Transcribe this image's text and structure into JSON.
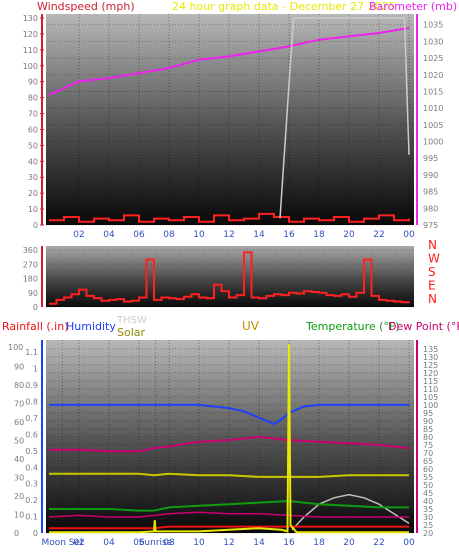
{
  "header": {
    "left": "Windspeed (mph)",
    "center": "24 hour graph data - December 27 2025",
    "right": "Barometer (mb)"
  },
  "legend": {
    "rainfall": "Rainfall (.in)",
    "humidity": "Humidity",
    "thsw": "THSW",
    "solar": "Solar",
    "uv": "UV",
    "temperature": "Temperature (°F)",
    "dewpoint": "Dew Point (°F)"
  },
  "compass": [
    "N",
    "W",
    "S",
    "E",
    "N"
  ],
  "colors": {
    "wind": "#ff2020",
    "windAxis": "#cc2030",
    "barometer": "#ee22ee",
    "rain": "#ee1111",
    "humidity": "#2040ff",
    "thsw": "#cccccc",
    "solar": "#c8c800",
    "uv": "#e8e800",
    "temperature": "#109a10",
    "dewpoint": "#cc0070",
    "header": "#e8e800"
  },
  "chart_data": [
    {
      "type": "line",
      "name": "wind-barometer",
      "x_ticks": [
        "02",
        "04",
        "06",
        "08",
        "10",
        "12",
        "14",
        "16",
        "18",
        "20",
        "22",
        "00"
      ],
      "left_axis": {
        "ticks": [
          0,
          10,
          20,
          30,
          40,
          50,
          60,
          70,
          80,
          90,
          100,
          110,
          120,
          130
        ],
        "ylim": [
          0,
          130
        ]
      },
      "right_axis": {
        "ticks": [
          975,
          980,
          985,
          990,
          995,
          1000,
          1005,
          1010,
          1015,
          1020,
          1025,
          1030,
          1035
        ],
        "ylim": [
          975,
          1037
        ]
      },
      "series": [
        {
          "key": "barometer",
          "x": [
            0,
            2,
            4,
            6,
            8,
            10,
            12,
            14,
            16,
            18,
            20,
            22,
            24
          ],
          "y": [
            1014,
            1018,
            1019,
            1020.5,
            1022,
            1024.5,
            1025.5,
            1027,
            1028.5,
            1030.5,
            1031.5,
            1032.5,
            1034
          ]
        },
        {
          "key": "wind",
          "x": [
            0,
            1,
            2,
            3,
            4,
            5,
            6,
            7,
            8,
            9,
            10,
            11,
            12,
            13,
            14,
            15,
            16,
            17,
            18,
            19,
            20,
            21,
            22,
            23,
            24
          ],
          "y": [
            3,
            5,
            2,
            4,
            3,
            6,
            2,
            4,
            3,
            5,
            2,
            6,
            3,
            4,
            7,
            5,
            2,
            4,
            3,
            5,
            2,
            4,
            6,
            3,
            4
          ]
        },
        {
          "key": "thsw",
          "x": [
            15.4,
            16.3,
            16.4,
            23.7,
            24
          ],
          "y": [
            977,
            1037,
            1037,
            1037,
            996
          ]
        }
      ]
    },
    {
      "type": "line",
      "name": "wind-direction",
      "y_ticks": [
        0,
        90,
        180,
        270,
        360
      ],
      "ylim": [
        0,
        360
      ],
      "series": [
        {
          "key": "direction",
          "x": [
            0,
            0.5,
            1,
            1.5,
            2,
            2.5,
            3,
            3.5,
            4,
            4.5,
            5,
            5.5,
            6,
            6.5,
            7,
            7.5,
            8,
            8.5,
            9,
            9.5,
            10,
            10.5,
            11,
            11.5,
            12,
            12.5,
            13,
            13.5,
            14,
            14.5,
            15,
            15.5,
            16,
            16.5,
            17,
            17.5,
            18,
            18.5,
            19,
            19.5,
            20,
            20.5,
            21,
            21.5,
            22,
            22.5,
            23,
            23.5,
            24
          ],
          "y": [
            20,
            45,
            60,
            80,
            110,
            70,
            55,
            40,
            45,
            50,
            35,
            40,
            60,
            300,
            45,
            60,
            55,
            50,
            65,
            80,
            60,
            55,
            140,
            100,
            60,
            75,
            345,
            60,
            55,
            70,
            80,
            75,
            90,
            85,
            100,
            95,
            90,
            75,
            70,
            80,
            65,
            90,
            300,
            70,
            45,
            40,
            35,
            30,
            25
          ]
        }
      ]
    },
    {
      "type": "line",
      "name": "weather",
      "x_ticks": [
        "Moon Set",
        "02",
        "04",
        "06",
        "Sunrise",
        "08",
        "10",
        "12",
        "14",
        "16",
        "18",
        "20",
        "22",
        "00"
      ],
      "left_axis": {
        "ticks": [
          0,
          0.1,
          0.2,
          0.3,
          0.4,
          0.5,
          0.6,
          0.7,
          0.8,
          0.9,
          1,
          1.1
        ],
        "ylim": [
          0,
          1.15
        ]
      },
      "right_axis": {
        "ticks": [
          20,
          25,
          30,
          35,
          40,
          45,
          50,
          55,
          60,
          65,
          70,
          75,
          80,
          85,
          90,
          95,
          100,
          105,
          110,
          115,
          120,
          125,
          130,
          135
        ],
        "ylim": [
          20,
          138
        ]
      },
      "series": [
        {
          "key": "humidity",
          "x": [
            0,
            2,
            4,
            6,
            8,
            10,
            12,
            13,
            14,
            14.5,
            15,
            15.5,
            16,
            17,
            18,
            20,
            22,
            24
          ],
          "y": [
            100,
            100,
            100,
            100,
            100,
            100,
            98,
            96,
            92,
            90,
            88,
            91,
            95,
            99,
            100,
            100,
            100,
            100
          ]
        },
        {
          "key": "temperature",
          "x": [
            0,
            4,
            6,
            7,
            8,
            10,
            12,
            14,
            16,
            18,
            20,
            22,
            24
          ],
          "y": [
            35,
            35,
            34,
            34,
            36,
            37,
            38,
            39,
            40,
            38,
            37,
            36,
            36
          ]
        },
        {
          "key": "dewpoint",
          "x": [
            0,
            2,
            4,
            6,
            7,
            8,
            10,
            12,
            14,
            16,
            18,
            20,
            22,
            24
          ],
          "y": [
            72,
            72,
            71,
            71,
            73,
            74,
            77,
            78,
            80,
            78,
            77,
            76,
            75,
            73
          ]
        },
        {
          "key": "solar",
          "x": [
            0,
            4,
            6,
            7,
            8,
            10,
            12,
            14,
            16,
            18,
            20,
            22,
            24
          ],
          "y": [
            57,
            57,
            57,
            56,
            57,
            56,
            56,
            55,
            55,
            55,
            56,
            56,
            56
          ]
        },
        {
          "key": "thsw",
          "x": [
            0,
            2,
            4,
            6,
            7,
            8,
            10,
            12,
            14,
            16,
            18,
            20,
            22,
            24
          ],
          "y": [
            30,
            31,
            30,
            30,
            31,
            32,
            33,
            32,
            32,
            31,
            30,
            30,
            30,
            30
          ]
        },
        {
          "key": "uvgray",
          "x": [
            16.2,
            17,
            18,
            19,
            20,
            21,
            22,
            23,
            24
          ],
          "y": [
            22,
            30,
            38,
            42,
            44,
            42,
            38,
            32,
            26
          ]
        },
        {
          "key": "rain",
          "x": [
            0,
            6,
            7,
            8,
            10,
            12,
            14,
            16,
            18,
            20,
            22,
            24
          ],
          "y": [
            23,
            23,
            23,
            24,
            24,
            24,
            24,
            24,
            24,
            24,
            24,
            24
          ]
        },
        {
          "key": "uv",
          "x": [
            0,
            6,
            7,
            7.05,
            7.1,
            10,
            12,
            14,
            15.5,
            15.9,
            16,
            16.1,
            16.5,
            24
          ],
          "y": [
            20.5,
            20.5,
            21,
            28,
            21,
            21,
            22,
            23,
            22,
            21,
            138,
            25,
            20.5,
            20.5
          ]
        }
      ]
    }
  ]
}
